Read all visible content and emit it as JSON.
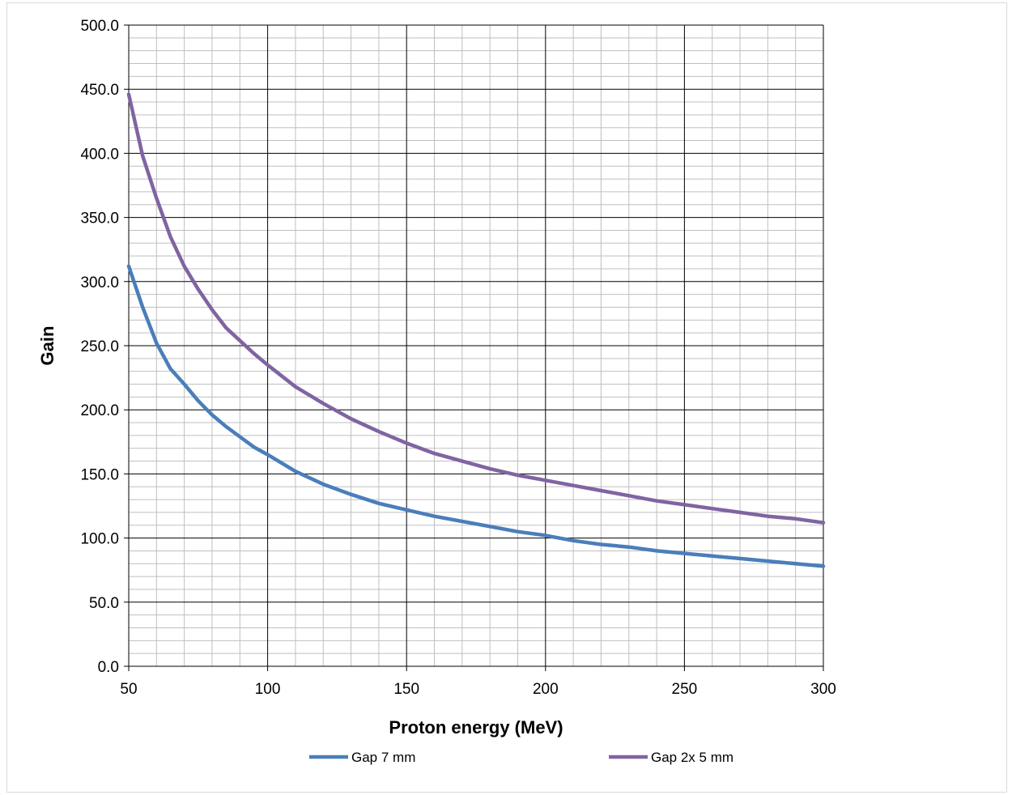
{
  "chart_data": {
    "type": "line",
    "title": "",
    "xlabel": "Proton energy (MeV)",
    "ylabel": "Gain",
    "xlim": [
      50,
      300
    ],
    "ylim": [
      0,
      500
    ],
    "x_ticks": [
      "50",
      "100",
      "150",
      "200",
      "250",
      "300"
    ],
    "y_ticks": [
      "0.0",
      "50.0",
      "100.0",
      "150.0",
      "200.0",
      "250.0",
      "300.0",
      "350.0",
      "400.0",
      "450.0",
      "500.0"
    ],
    "x_tick_values": [
      50,
      100,
      150,
      200,
      250,
      300
    ],
    "y_tick_values": [
      0,
      50,
      100,
      150,
      200,
      250,
      300,
      350,
      400,
      450,
      500
    ],
    "grid": {
      "major": true,
      "minor": true,
      "major_color": "#000000",
      "minor_color": "#bfbfbf"
    },
    "legend_position": "bottom",
    "series": [
      {
        "name": "Gap 7 mm",
        "color": "#4a7ebb",
        "x": [
          50,
          55,
          60,
          65,
          70,
          75,
          80,
          85,
          90,
          95,
          100,
          110,
          120,
          130,
          140,
          150,
          160,
          170,
          180,
          190,
          200,
          210,
          220,
          230,
          240,
          250,
          260,
          270,
          280,
          290,
          300
        ],
        "y": [
          312,
          280,
          252,
          232,
          220,
          207,
          196,
          187,
          179,
          171,
          165,
          152,
          142,
          134,
          127,
          122,
          117,
          113,
          109,
          105,
          102,
          98,
          95,
          93,
          90,
          88,
          86,
          84,
          82,
          80,
          78
        ]
      },
      {
        "name": "Gap 2x 5 mm",
        "color": "#8064a2",
        "x": [
          50,
          55,
          60,
          65,
          70,
          75,
          80,
          85,
          90,
          95,
          100,
          110,
          120,
          130,
          140,
          150,
          160,
          170,
          180,
          190,
          200,
          210,
          220,
          230,
          240,
          250,
          260,
          270,
          280,
          290,
          300
        ],
        "y": [
          446,
          398,
          365,
          335,
          312,
          294,
          278,
          264,
          254,
          244,
          235,
          218,
          205,
          193,
          183,
          174,
          166,
          160,
          154,
          149,
          145,
          141,
          137,
          133,
          129,
          126,
          123,
          120,
          117,
          115,
          112
        ]
      }
    ]
  }
}
